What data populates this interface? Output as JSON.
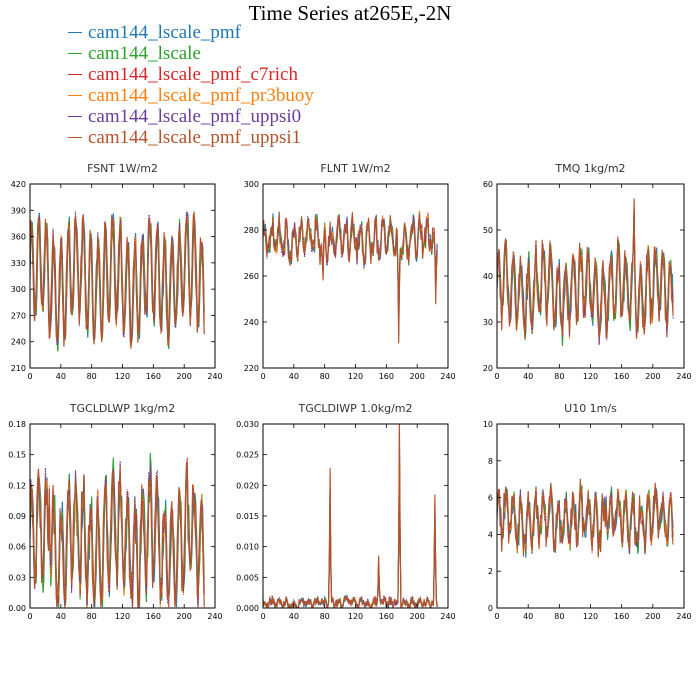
{
  "title": "Time Series at265E,-2N",
  "legend": [
    {
      "name": "cam144_lscale_pmf",
      "color": "#1f77b4"
    },
    {
      "name": "cam144_lscale",
      "color": "#2ca02c"
    },
    {
      "name": "cam144_lscale_pmf_c7rich",
      "color": "#d62728"
    },
    {
      "name": "cam144_lscale_pmf_pr3buoy",
      "color": "#ff7f0e"
    },
    {
      "name": "cam144_lscale_pmf_uppsi0",
      "color": "#6a3d9a"
    },
    {
      "name": "cam144_lscale_pmf_uppsi1",
      "color": "#b5522b"
    }
  ],
  "chart_data": [
    {
      "type": "line",
      "title": "FSNT   1W/m2",
      "xlim": [
        0,
        240
      ],
      "ylim": [
        210,
        420
      ],
      "xticks": [
        "0",
        "40",
        "80",
        "120",
        "160",
        "200",
        "240"
      ],
      "yticks": [
        "210",
        "240",
        "270",
        "300",
        "330",
        "360",
        "390",
        "420"
      ],
      "model": {
        "mean": 312,
        "amp": 55,
        "noise": 14,
        "spikes": []
      }
    },
    {
      "type": "line",
      "title": "FLNT   1W/m2",
      "xlim": [
        0,
        240
      ],
      "ylim": [
        220,
        300
      ],
      "xticks": [
        "0",
        "40",
        "80",
        "120",
        "160",
        "200",
        "240"
      ],
      "yticks": [
        "220",
        "240",
        "260",
        "280",
        "300"
      ],
      "model": {
        "mean": 276,
        "amp": 6,
        "noise": 5,
        "spikes": [
          [
            78,
            -25
          ],
          [
            176,
            -48
          ],
          [
            224,
            -30
          ]
        ]
      }
    },
    {
      "type": "line",
      "title": "TMQ   1kg/m2",
      "xlim": [
        0,
        240
      ],
      "ylim": [
        20,
        60
      ],
      "xticks": [
        "0",
        "40",
        "80",
        "120",
        "160",
        "200",
        "240"
      ],
      "yticks": [
        "20",
        "30",
        "40",
        "50",
        "60"
      ],
      "model": {
        "mean": 37,
        "amp": 7,
        "noise": 3,
        "spikes": [
          [
            176,
            17
          ]
        ]
      }
    },
    {
      "type": "line",
      "title": "TGCLDLWP   1kg/m2",
      "xlim": [
        0,
        240
      ],
      "ylim": [
        0,
        0.18
      ],
      "xticks": [
        "0",
        "40",
        "80",
        "120",
        "160",
        "200",
        "240"
      ],
      "yticks": [
        "0.00",
        "0.03",
        "0.06",
        "0.09",
        "0.12",
        "0.15",
        "0.18"
      ],
      "model": {
        "mean": 0.065,
        "amp": 0.05,
        "noise": 0.02,
        "spikes": [
          [
            25,
            0.1
          ]
        ]
      }
    },
    {
      "type": "line",
      "title": "TGCLDIWP   1.0kg/m2",
      "xlim": [
        0,
        240
      ],
      "ylim": [
        0,
        0.03
      ],
      "xticks": [
        "0",
        "40",
        "80",
        "120",
        "160",
        "200",
        "240"
      ],
      "yticks": [
        "0.000",
        "0.005",
        "0.010",
        "0.015",
        "0.020",
        "0.025",
        "0.030"
      ],
      "model": {
        "mean": 0.0008,
        "amp": 0.0004,
        "noise": 0.0008,
        "spikes": [
          [
            87,
            0.022
          ],
          [
            177,
            0.03
          ],
          [
            223,
            0.017
          ],
          [
            150,
            0.008
          ]
        ]
      }
    },
    {
      "type": "line",
      "title": "U10   1m/s",
      "xlim": [
        0,
        240
      ],
      "ylim": [
        0,
        10
      ],
      "xticks": [
        "0",
        "40",
        "80",
        "120",
        "160",
        "200",
        "240"
      ],
      "yticks": [
        "0",
        "2",
        "4",
        "6",
        "8",
        "10"
      ],
      "model": {
        "mean": 4.8,
        "amp": 1.2,
        "noise": 0.7,
        "spikes": [
          [
            140,
            3
          ]
        ]
      }
    }
  ]
}
